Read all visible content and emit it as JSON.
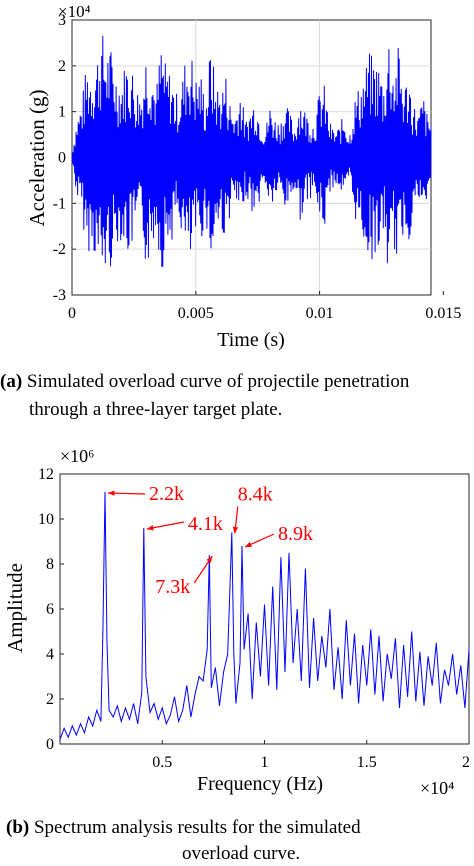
{
  "chart_data": [
    {
      "type": "line",
      "title": "",
      "xlabel": "Time (s)",
      "ylabel": "Acceleration (g)",
      "xlim": [
        0,
        0.0145
      ],
      "ylim": [
        -3,
        3
      ],
      "y_multiplier_label": "×10⁴",
      "x_ticks": [
        0,
        0.005,
        0.01,
        0.015
      ],
      "x_tick_labels": [
        "0",
        "0.005",
        "0.01",
        "0.015"
      ],
      "y_ticks": [
        -3,
        -2,
        -1,
        0,
        1,
        2,
        3
      ],
      "y_tick_labels": [
        "-3",
        "-2",
        "-1",
        "0",
        "1",
        "2",
        "3"
      ],
      "grid": true,
      "line_color": "#0000ff",
      "series": [
        {
          "x": [
            0.0,
            0.0002,
            0.0004,
            0.0006,
            0.0008,
            0.001,
            0.0012,
            0.0014,
            0.0016,
            0.0018,
            0.002,
            0.0022,
            0.0024,
            0.0026,
            0.0028,
            0.003,
            0.0032,
            0.0034,
            0.0036,
            0.0038,
            0.004,
            0.0042,
            0.0044,
            0.0046,
            0.0048,
            0.005,
            0.0052,
            0.0054,
            0.0056,
            0.0058,
            0.006,
            0.0062,
            0.0064,
            0.0066,
            0.0068,
            0.007,
            0.0072,
            0.0074,
            0.0076,
            0.0078,
            0.008,
            0.0082,
            0.0084,
            0.0086,
            0.0088,
            0.009,
            0.0092,
            0.0094,
            0.0096,
            0.0098,
            0.01,
            0.0102,
            0.0104,
            0.0106,
            0.0108,
            0.011,
            0.0112,
            0.0114,
            0.0116,
            0.0118,
            0.012,
            0.0122,
            0.0124,
            0.0126,
            0.0128,
            0.013,
            0.0132,
            0.0134,
            0.0136,
            0.0138,
            0.014,
            0.0142,
            0.0144,
            0.0145
          ],
          "values": [
            0.1,
            -0.9,
            1.3,
            -2.1,
            2.0,
            -2.3,
            2.8,
            -2.5,
            2.4,
            -1.9,
            1.8,
            -2.2,
            2.1,
            -1.6,
            1.5,
            -2.5,
            2.2,
            -1.5,
            2.6,
            -2.0,
            1.9,
            -1.4,
            1.6,
            -2.3,
            2.4,
            -1.8,
            1.9,
            -1.3,
            2.5,
            -1.7,
            1.5,
            -1.9,
            1.2,
            -1.0,
            1.6,
            -0.8,
            1.1,
            -1.4,
            0.9,
            -0.6,
            1.2,
            -0.9,
            0.8,
            -1.2,
            1.0,
            -0.7,
            1.4,
            -1.1,
            0.9,
            -0.8,
            1.5,
            -1.6,
            0.8,
            -0.6,
            0.7,
            -1.0,
            0.5,
            -1.3,
            1.6,
            -1.9,
            2.3,
            -2.2,
            2.1,
            -1.7,
            2.8,
            -2.0,
            2.5,
            -1.6,
            1.9,
            -1.2,
            1.0,
            -1.4,
            0.8,
            -1.0
          ]
        }
      ]
    },
    {
      "type": "line",
      "title": "",
      "xlabel": "Frequency (Hz)",
      "ylabel": "Amplitude",
      "xlim": [
        0,
        20000
      ],
      "ylim": [
        0,
        12
      ],
      "x_multiplier_label": "×10⁴",
      "y_multiplier_label": "×10⁶",
      "x_ticks": [
        5000,
        10000,
        15000,
        20000
      ],
      "x_tick_labels": [
        "0.5",
        "1",
        "1.5",
        "2"
      ],
      "y_ticks": [
        0,
        2,
        4,
        6,
        8,
        10,
        12
      ],
      "y_tick_labels": [
        "0",
        "2",
        "4",
        "6",
        "8",
        "10",
        "12"
      ],
      "grid": false,
      "line_color": "#0000ff",
      "annotation_color": "#ff0000",
      "annotations": [
        {
          "text": "2.2k",
          "x": 2200,
          "y": 11.2
        },
        {
          "text": "4.1k",
          "x": 4100,
          "y": 9.6
        },
        {
          "text": "7.3k",
          "x": 7300,
          "y": 8.4
        },
        {
          "text": "8.4k",
          "x": 8400,
          "y": 9.4
        },
        {
          "text": "8.9k",
          "x": 8900,
          "y": 8.8
        }
      ],
      "series": [
        {
          "x": [
            0,
            200,
            400,
            600,
            800,
            1000,
            1200,
            1400,
            1600,
            1800,
            2000,
            2100,
            2200,
            2300,
            2400,
            2600,
            2800,
            3000,
            3200,
            3400,
            3600,
            3800,
            4000,
            4100,
            4200,
            4400,
            4600,
            4800,
            5000,
            5200,
            5400,
            5600,
            5800,
            6000,
            6200,
            6400,
            6600,
            6800,
            7000,
            7200,
            7300,
            7400,
            7600,
            7800,
            8000,
            8200,
            8400,
            8500,
            8600,
            8800,
            8900,
            9000,
            9200,
            9400,
            9600,
            9800,
            10000,
            10200,
            10400,
            10600,
            10800,
            11000,
            11200,
            11400,
            11600,
            11800,
            12000,
            12200,
            12400,
            12600,
            12800,
            13000,
            13200,
            13400,
            13600,
            13800,
            14000,
            14200,
            14400,
            14600,
            14800,
            15000,
            15200,
            15400,
            15600,
            15800,
            16000,
            16200,
            16400,
            16600,
            16800,
            17000,
            17200,
            17400,
            17600,
            17800,
            18000,
            18200,
            18400,
            18600,
            18800,
            19000,
            19200,
            19400,
            19600,
            19800,
            20000
          ],
          "values": [
            0.2,
            0.7,
            0.3,
            0.8,
            0.4,
            0.9,
            0.5,
            1.2,
            0.8,
            1.5,
            1.0,
            5.0,
            11.2,
            4.5,
            1.5,
            1.2,
            1.7,
            1.0,
            1.6,
            1.1,
            1.8,
            0.9,
            2.3,
            9.6,
            3.0,
            1.4,
            1.8,
            1.1,
            1.6,
            0.9,
            1.3,
            2.1,
            1.0,
            1.5,
            2.6,
            1.2,
            2.2,
            3.0,
            2.8,
            4.2,
            8.4,
            2.5,
            3.4,
            1.7,
            3.2,
            4.0,
            9.4,
            4.0,
            1.8,
            3.6,
            8.8,
            4.2,
            5.8,
            2.0,
            5.4,
            3.0,
            6.2,
            2.6,
            7.0,
            2.4,
            8.3,
            3.2,
            8.5,
            3.6,
            6.0,
            2.8,
            7.8,
            2.5,
            5.6,
            2.8,
            4.8,
            3.4,
            6.0,
            2.4,
            4.3,
            2.0,
            5.5,
            2.6,
            4.9,
            1.8,
            4.4,
            2.6,
            5.1,
            2.2,
            4.8,
            1.9,
            4.0,
            2.9,
            4.7,
            1.6,
            4.4,
            2.1,
            5.0,
            1.9,
            4.1,
            1.7,
            3.9,
            2.6,
            4.5,
            1.8,
            3.3,
            2.6,
            4.0,
            2.2,
            3.5,
            1.6,
            4.2
          ]
        }
      ]
    }
  ],
  "captions": {
    "a_label": "(a)",
    "a_line1": "Simulated overload curve of projectile penetration",
    "a_line2": "through a three-layer target  plate.",
    "b_label": "(b)",
    "b_line1": "Spectrum analysis results for the simulated",
    "b_line2": "overload curve."
  }
}
